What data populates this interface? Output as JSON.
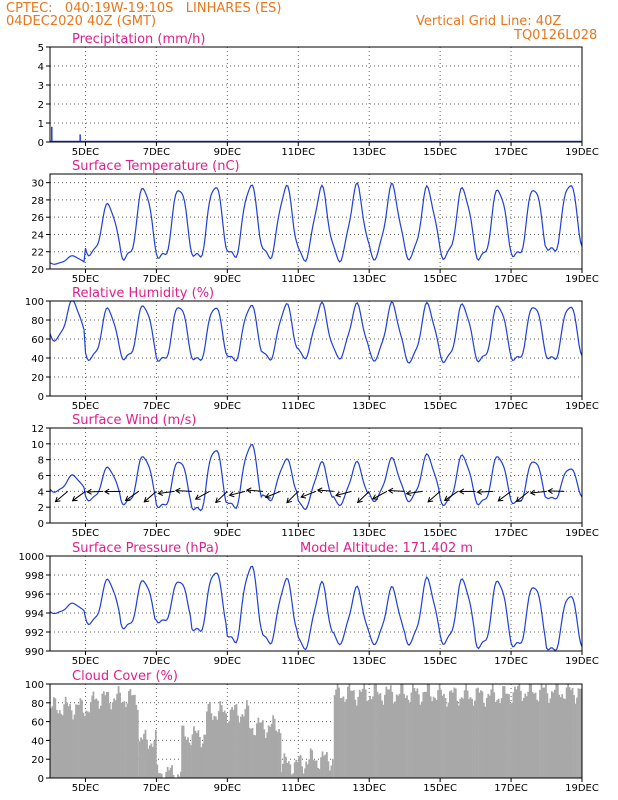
{
  "header": {
    "line1": "CPTEC:   040:19W-19:10S   LINHARES (ES)",
    "line2": "04DEC2020 40Z (GMT)",
    "right1": "Vertical Grid Line: 40Z",
    "right2": "TQ0126L028"
  },
  "colors": {
    "header": "#e8761c",
    "title": "#e0208c",
    "line": "#1f3fd8",
    "cloud": "#a8a8a8",
    "arrow": "#000000"
  },
  "time_axis": {
    "start": "04DEC2020 00Z",
    "end": "19DEC2020 00Z",
    "tick_labels": [
      "5DEC",
      "7DEC",
      "9DEC",
      "11DEC",
      "13DEC",
      "15DEC",
      "17DEC",
      "19DEC"
    ],
    "tick_days": [
      5,
      7,
      9,
      11,
      13,
      15,
      17,
      19
    ]
  },
  "chart_data": [
    {
      "id": "precip",
      "type": "line",
      "title": "Precipitation (mm/h)",
      "ylim": [
        0,
        5
      ],
      "yticks": [
        0,
        1,
        2,
        3,
        4,
        5
      ],
      "spikes": [
        {
          "day": 4.05,
          "value": 0.8
        },
        {
          "day": 4.85,
          "value": 0.4
        }
      ],
      "baseline": 0
    },
    {
      "id": "temp",
      "type": "line",
      "title": "Surface Temperature (nC)",
      "ylim": [
        20,
        31
      ],
      "yticks": [
        20,
        22,
        24,
        26,
        28,
        30
      ],
      "daily_max": [
        21.5,
        27.5,
        29.5,
        29.5,
        29.8,
        29.8,
        29.5,
        29.3,
        29.5,
        29.5,
        29.3,
        29.3,
        29.3,
        29.5,
        30.0
      ],
      "daily_min": [
        20.6,
        21.8,
        21.3,
        21.3,
        21.3,
        21.5,
        21.5,
        21.3,
        21.3,
        21.5,
        21.5,
        21.5,
        21.3,
        21.5,
        22.0
      ]
    },
    {
      "id": "rh",
      "type": "line",
      "title": "Relative Humidity (%)",
      "ylim": [
        0,
        100
      ],
      "yticks": [
        0,
        20,
        40,
        60,
        80,
        100
      ],
      "daily_max": [
        100,
        92,
        96,
        96,
        95,
        96,
        96,
        96,
        95,
        96,
        96,
        96,
        96,
        96,
        96
      ],
      "daily_min": [
        60,
        40,
        40,
        37,
        37,
        38,
        40,
        42,
        42,
        40,
        38,
        38,
        38,
        38,
        38
      ]
    },
    {
      "id": "wind",
      "type": "line",
      "title": "Surface Wind (m/s)",
      "ylim": [
        0,
        12
      ],
      "yticks": [
        0,
        2,
        4,
        6,
        8,
        10,
        12
      ],
      "daily_max": [
        6,
        7,
        8.5,
        8,
        9.5,
        10,
        8,
        7.5,
        7.5,
        8,
        8.5,
        8.5,
        8.5,
        8,
        7
      ],
      "daily_min": [
        4,
        3,
        2.5,
        2,
        1.5,
        2,
        3,
        2,
        2.5,
        3,
        3,
        2.5,
        2.5,
        2.5,
        3
      ],
      "barbs_per_day": 2
    },
    {
      "id": "pres",
      "type": "line",
      "title": "Surface Pressure (hPa)",
      "annotation": "Model Altitude: 171.402 m",
      "ylim": [
        990,
        1000
      ],
      "yticks": [
        990,
        992,
        994,
        996,
        998,
        1000
      ],
      "daily_max": [
        995,
        997.5,
        997.5,
        997.5,
        998.5,
        999,
        997.5,
        997,
        996.5,
        996.5,
        997.5,
        997.5,
        997.5,
        997,
        996
      ],
      "daily_min": [
        994,
        993,
        992.5,
        993,
        992,
        991,
        991,
        990.5,
        991,
        991,
        991,
        991,
        990.5,
        990.5,
        990
      ]
    },
    {
      "id": "cloud",
      "type": "bar",
      "title": "Cloud Cover (%)",
      "ylim": [
        0,
        100
      ],
      "yticks": [
        0,
        20,
        40,
        60,
        80,
        100
      ],
      "segments": [
        {
          "from": 4.0,
          "to": 5.2,
          "value": 75
        },
        {
          "from": 5.2,
          "to": 6.5,
          "value": 85
        },
        {
          "from": 6.5,
          "to": 7.0,
          "value": 40
        },
        {
          "from": 7.0,
          "to": 7.7,
          "value": 5
        },
        {
          "from": 7.7,
          "to": 8.4,
          "value": 45
        },
        {
          "from": 8.4,
          "to": 9.6,
          "value": 70
        },
        {
          "from": 9.6,
          "to": 10.5,
          "value": 55
        },
        {
          "from": 10.5,
          "to": 11.2,
          "value": 15
        },
        {
          "from": 11.2,
          "to": 12.0,
          "value": 20
        },
        {
          "from": 12.0,
          "to": 12.5,
          "value": 90
        },
        {
          "from": 12.5,
          "to": 15.0,
          "value": 90
        },
        {
          "from": 15.0,
          "to": 17.0,
          "value": 88
        },
        {
          "from": 17.0,
          "to": 19.0,
          "value": 92
        }
      ]
    }
  ]
}
